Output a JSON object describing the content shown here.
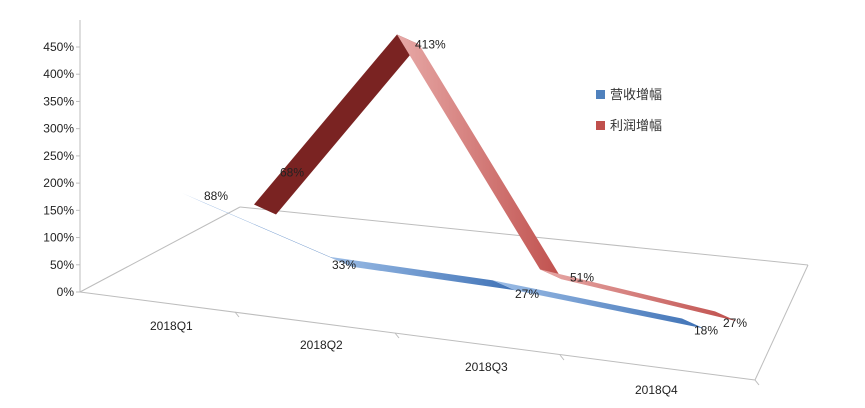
{
  "chart_data": {
    "type": "line",
    "categories": [
      "2018Q1",
      "2018Q2",
      "2018Q3",
      "2018Q4"
    ],
    "ylim": [
      0,
      450
    ],
    "yticks": [
      0,
      50,
      100,
      150,
      200,
      250,
      300,
      350,
      400,
      450
    ],
    "ytick_suffix": "%",
    "grid": false,
    "legend": "right",
    "series": [
      {
        "name": "营收增幅",
        "values": [
          88,
          33,
          27,
          18
        ],
        "labels": [
          "88%",
          "33%",
          "27%",
          "18%"
        ],
        "color": "#4f81bd"
      },
      {
        "name": "利润增幅",
        "values": [
          68,
          413,
          51,
          27
        ],
        "labels": [
          "68%",
          "413%",
          "51%",
          "27%"
        ],
        "color": "#c0504d"
      }
    ]
  }
}
